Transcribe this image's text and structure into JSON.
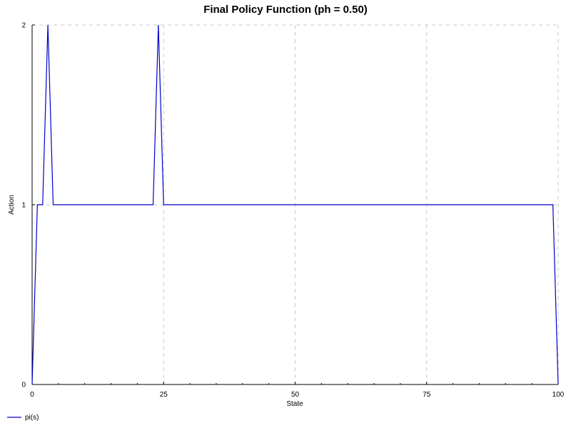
{
  "chart_data": {
    "type": "line",
    "title": "Final Policy Function (ph = 0.50)",
    "xlabel": "State",
    "ylabel": "Action",
    "xlim": [
      0,
      100
    ],
    "ylim": [
      0,
      2
    ],
    "x_ticks": [
      0,
      25,
      50,
      75,
      100
    ],
    "y_ticks": [
      0,
      1,
      2
    ],
    "grid": true,
    "legend_position": "bottom-left",
    "colors": {
      "series": "#0000cc",
      "grid": "#c8c8c8",
      "axis": "#000000"
    },
    "series": [
      {
        "name": "pi(s)",
        "x": [
          0,
          1,
          2,
          3,
          4,
          5,
          6,
          7,
          8,
          9,
          10,
          11,
          12,
          13,
          14,
          15,
          16,
          17,
          18,
          19,
          20,
          21,
          22,
          23,
          24,
          25,
          26,
          27,
          28,
          29,
          30,
          31,
          32,
          33,
          34,
          35,
          36,
          37,
          38,
          39,
          40,
          41,
          42,
          43,
          44,
          45,
          46,
          47,
          48,
          49,
          50,
          51,
          52,
          53,
          54,
          55,
          56,
          57,
          58,
          59,
          60,
          61,
          62,
          63,
          64,
          65,
          66,
          67,
          68,
          69,
          70,
          71,
          72,
          73,
          74,
          75,
          76,
          77,
          78,
          79,
          80,
          81,
          82,
          83,
          84,
          85,
          86,
          87,
          88,
          89,
          90,
          91,
          92,
          93,
          94,
          95,
          96,
          97,
          98,
          99,
          100
        ],
        "y": [
          0,
          1,
          1,
          2,
          1,
          1,
          1,
          1,
          1,
          1,
          1,
          1,
          1,
          1,
          1,
          1,
          1,
          1,
          1,
          1,
          1,
          1,
          1,
          1,
          2,
          1,
          1,
          1,
          1,
          1,
          1,
          1,
          1,
          1,
          1,
          1,
          1,
          1,
          1,
          1,
          1,
          1,
          1,
          1,
          1,
          1,
          1,
          1,
          1,
          1,
          1,
          1,
          1,
          1,
          1,
          1,
          1,
          1,
          1,
          1,
          1,
          1,
          1,
          1,
          1,
          1,
          1,
          1,
          1,
          1,
          1,
          1,
          1,
          1,
          1,
          1,
          1,
          1,
          1,
          1,
          1,
          1,
          1,
          1,
          1,
          1,
          1,
          1,
          1,
          1,
          1,
          1,
          1,
          1,
          1,
          1,
          1,
          1,
          1,
          1,
          0
        ]
      }
    ]
  }
}
